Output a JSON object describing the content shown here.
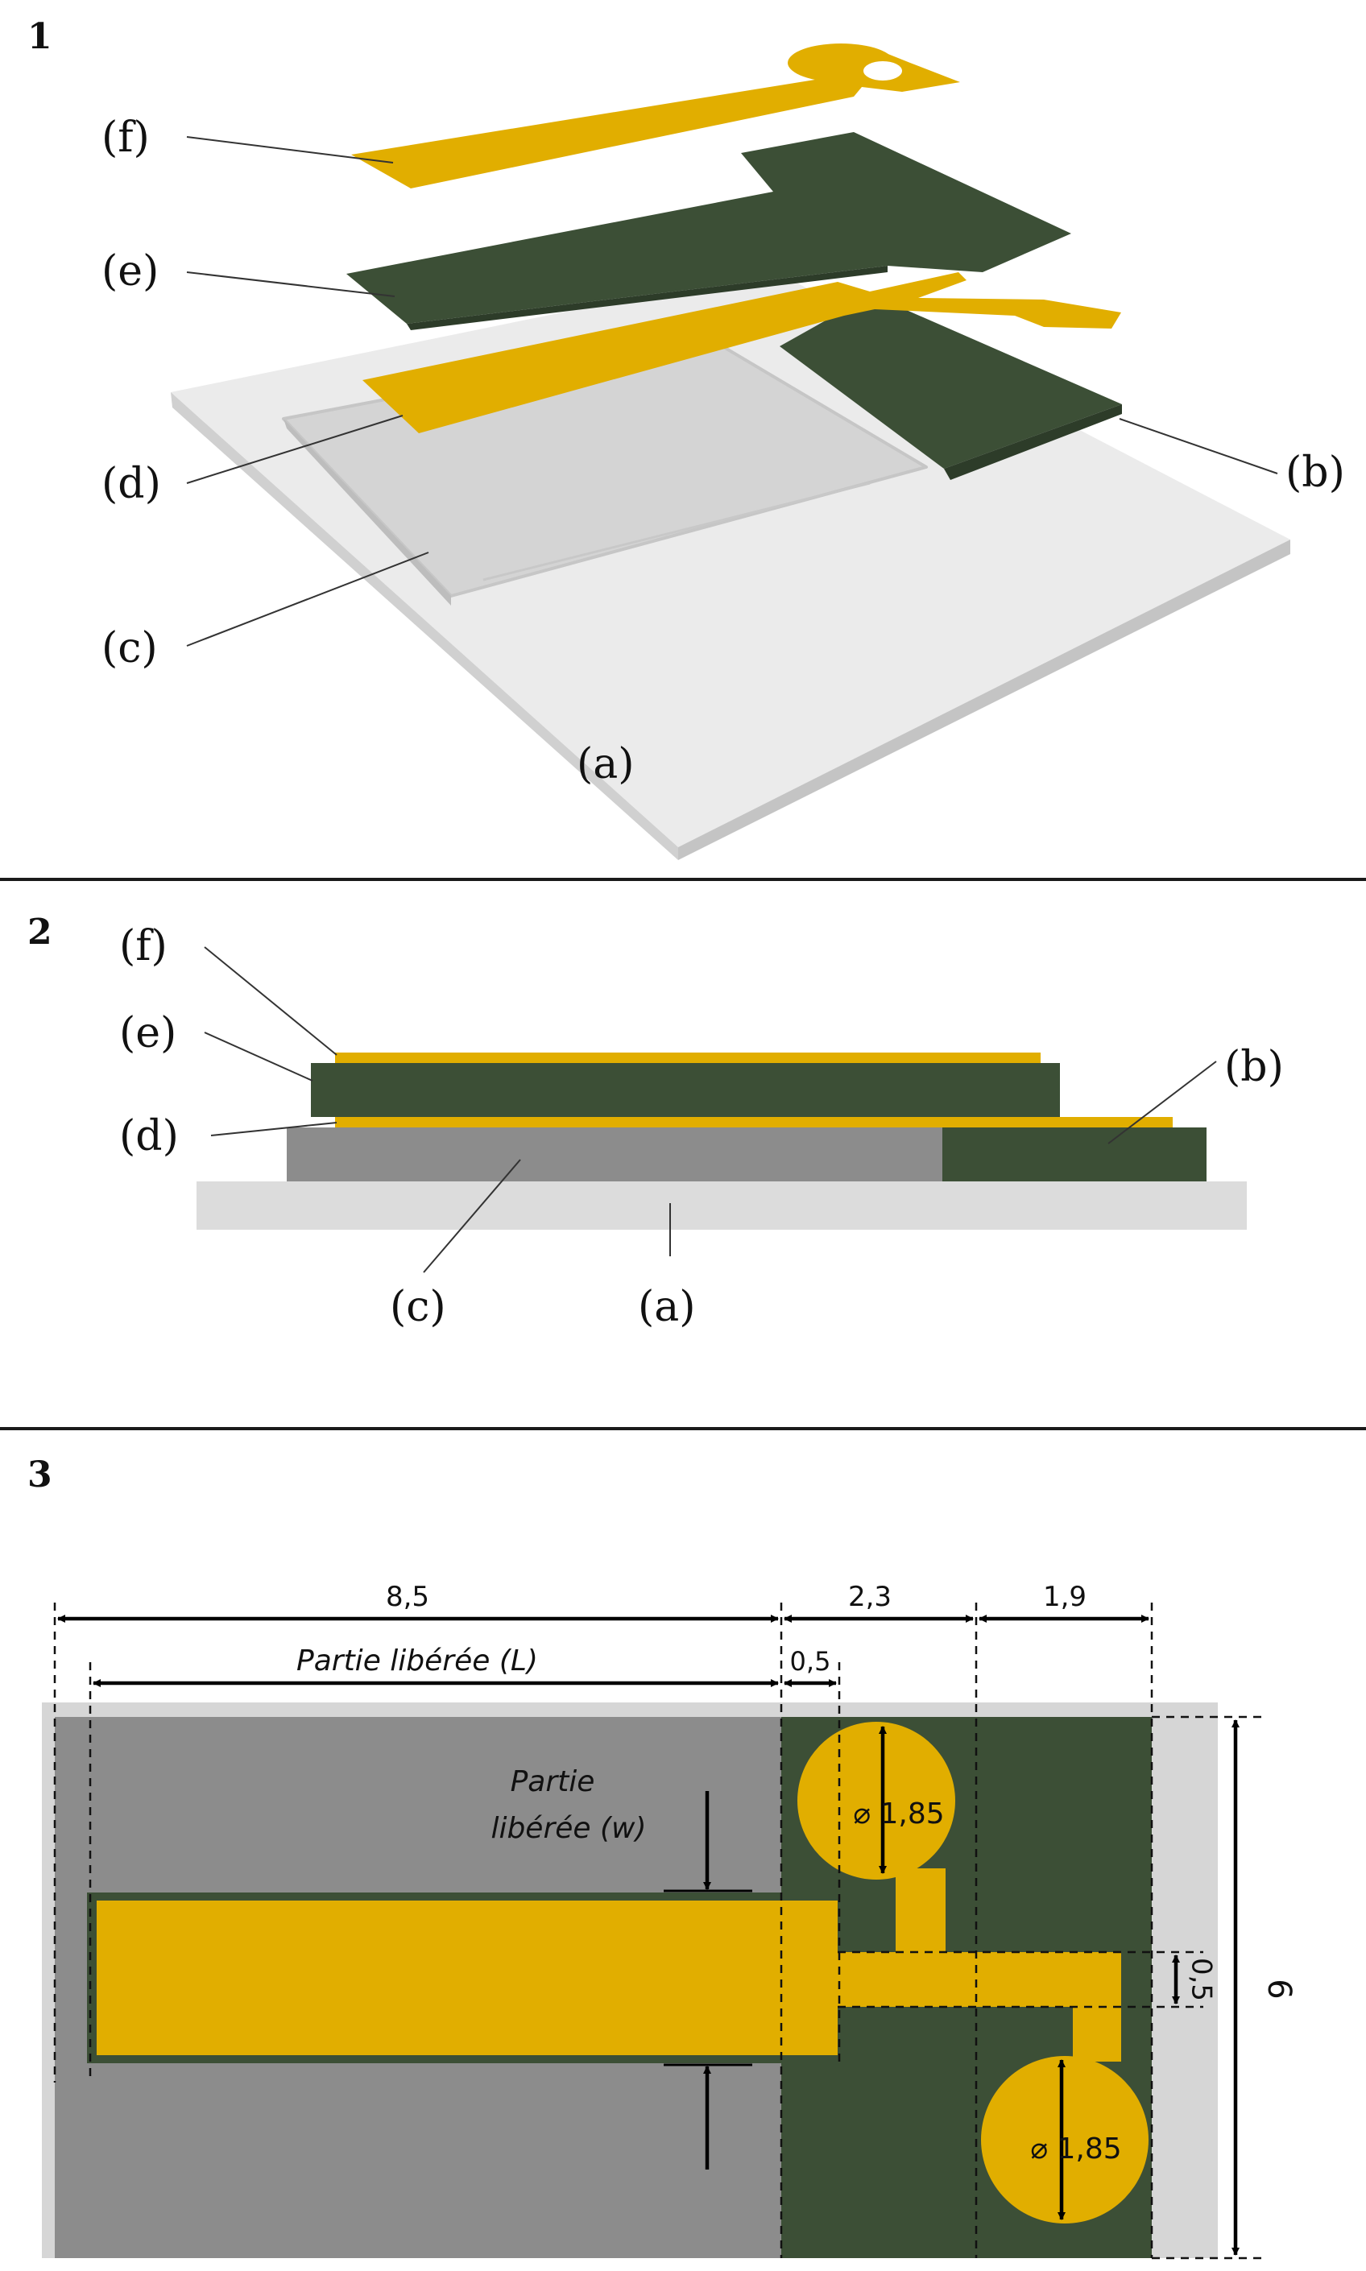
{
  "panels": {
    "p1": {
      "number": "1",
      "labels": {
        "f": "(f)",
        "e": "(e)",
        "d": "(d)",
        "c": "(c)",
        "b": "(b)",
        "a": "(a)"
      }
    },
    "p2": {
      "number": "2",
      "labels": {
        "f": "(f)",
        "e": "(e)",
        "d": "(d)",
        "c": "(c)",
        "b": "(b)",
        "a": "(a)"
      }
    },
    "p3": {
      "number": "3",
      "dims": {
        "total_L": "8,5",
        "mid_w": "2,3",
        "right_w": "1,9",
        "partie_L": "Partie libérée (L)",
        "small": "0,5",
        "partie_w_line1": "Partie",
        "partie_w_line2": "libérée (w)",
        "diam_top": "⌀ 1,85",
        "diam_bottom": "⌀ 1,85",
        "gap": "0,5",
        "height": "6"
      }
    }
  },
  "colors": {
    "gold": "#E1AE00",
    "green": "#3C4F36",
    "gray_sub": "#8C8C8C",
    "light_gray": "#DCDCDC",
    "rule": "#1A1A1A"
  }
}
